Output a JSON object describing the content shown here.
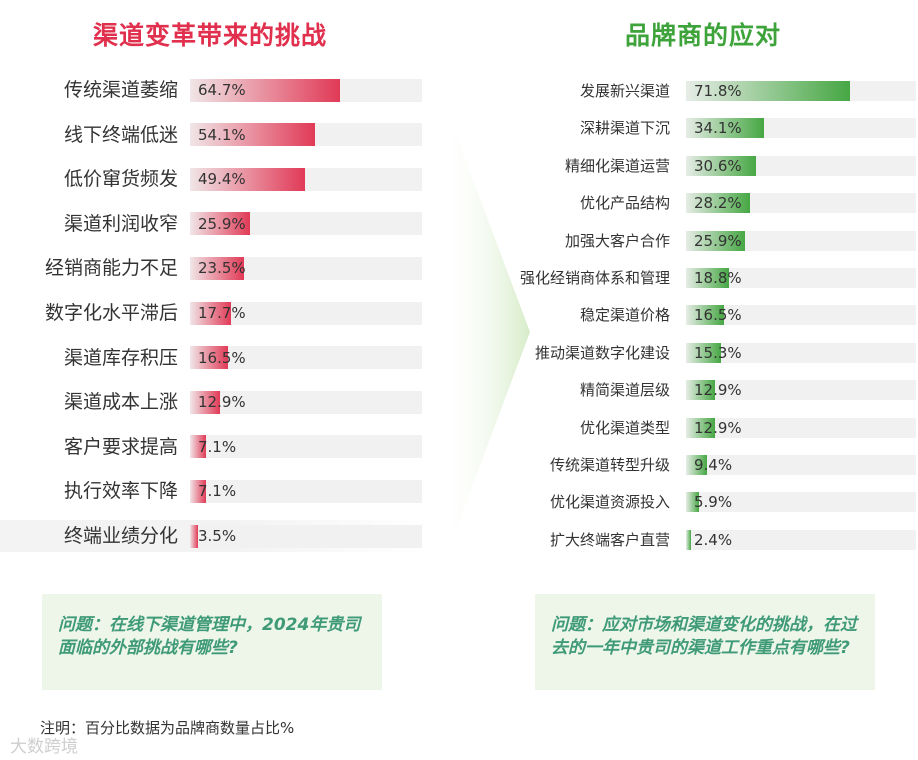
{
  "titles": {
    "left": "渠道变革带来的挑战",
    "right": "品牌商的应对"
  },
  "colors": {
    "left_title": "#e0304e",
    "right_title": "#3da33a",
    "left_bar": "#e0304e",
    "right_bar": "#3da33a",
    "question_text": "#3f9a78",
    "question_bg": "#eef6e9"
  },
  "chart_data": [
    {
      "type": "bar",
      "orientation": "horizontal",
      "title": "渠道变革带来的挑战",
      "unit": "%",
      "xlim": [
        0,
        100
      ],
      "categories": [
        "传统渠道萎缩",
        "线下终端低迷",
        "低价窜货频发",
        "渠道利润收窄",
        "经销商能力不足",
        "数字化水平滞后",
        "渠道库存积压",
        "渠道成本上涨",
        "客户要求提高",
        "执行效率下降",
        "终端业绩分化"
      ],
      "values": [
        64.7,
        54.1,
        49.4,
        25.9,
        23.5,
        17.7,
        16.5,
        12.9,
        7.1,
        7.1,
        3.5
      ],
      "labels": [
        "64.7%",
        "54.1%",
        "49.4%",
        "25.9%",
        "23.5%",
        "17.7%",
        "16.5%",
        "12.9%",
        "7.1%",
        "7.1%",
        "3.5%"
      ]
    },
    {
      "type": "bar",
      "orientation": "horizontal",
      "title": "品牌商的应对",
      "unit": "%",
      "xlim": [
        0,
        100
      ],
      "categories": [
        "发展新兴渠道",
        "深耕渠道下沉",
        "精细化渠道运营",
        "优化产品结构",
        "加强大客户合作",
        "强化经销商体系和管理",
        "稳定渠道价格",
        "推动渠道数字化建设",
        "精简渠道层级",
        "优化渠道类型",
        "传统渠道转型升级",
        "优化渠道资源投入",
        "扩大终端客户直营"
      ],
      "values": [
        71.8,
        34.1,
        30.6,
        28.2,
        25.9,
        18.8,
        16.5,
        15.3,
        12.9,
        12.9,
        9.4,
        5.9,
        2.4
      ],
      "labels": [
        "71.8%",
        "34.1%",
        "30.6%",
        "28.2%",
        "25.9%",
        "18.8%",
        "16.5%",
        "15.3%",
        "12.9%",
        "12.9%",
        "9.4%",
        "5.9%",
        "2.4%"
      ]
    }
  ],
  "questions": {
    "left": "问题：在线下渠道管理中，2024年贵司面临的外部挑战有哪些?",
    "right": "问题：应对市场和渠道变化的挑战，在过去的一年中贵司的渠道工作重点有哪些?"
  },
  "footnote": "注明：百分比数据为品牌商数量占比%",
  "watermark": "大数跨境"
}
